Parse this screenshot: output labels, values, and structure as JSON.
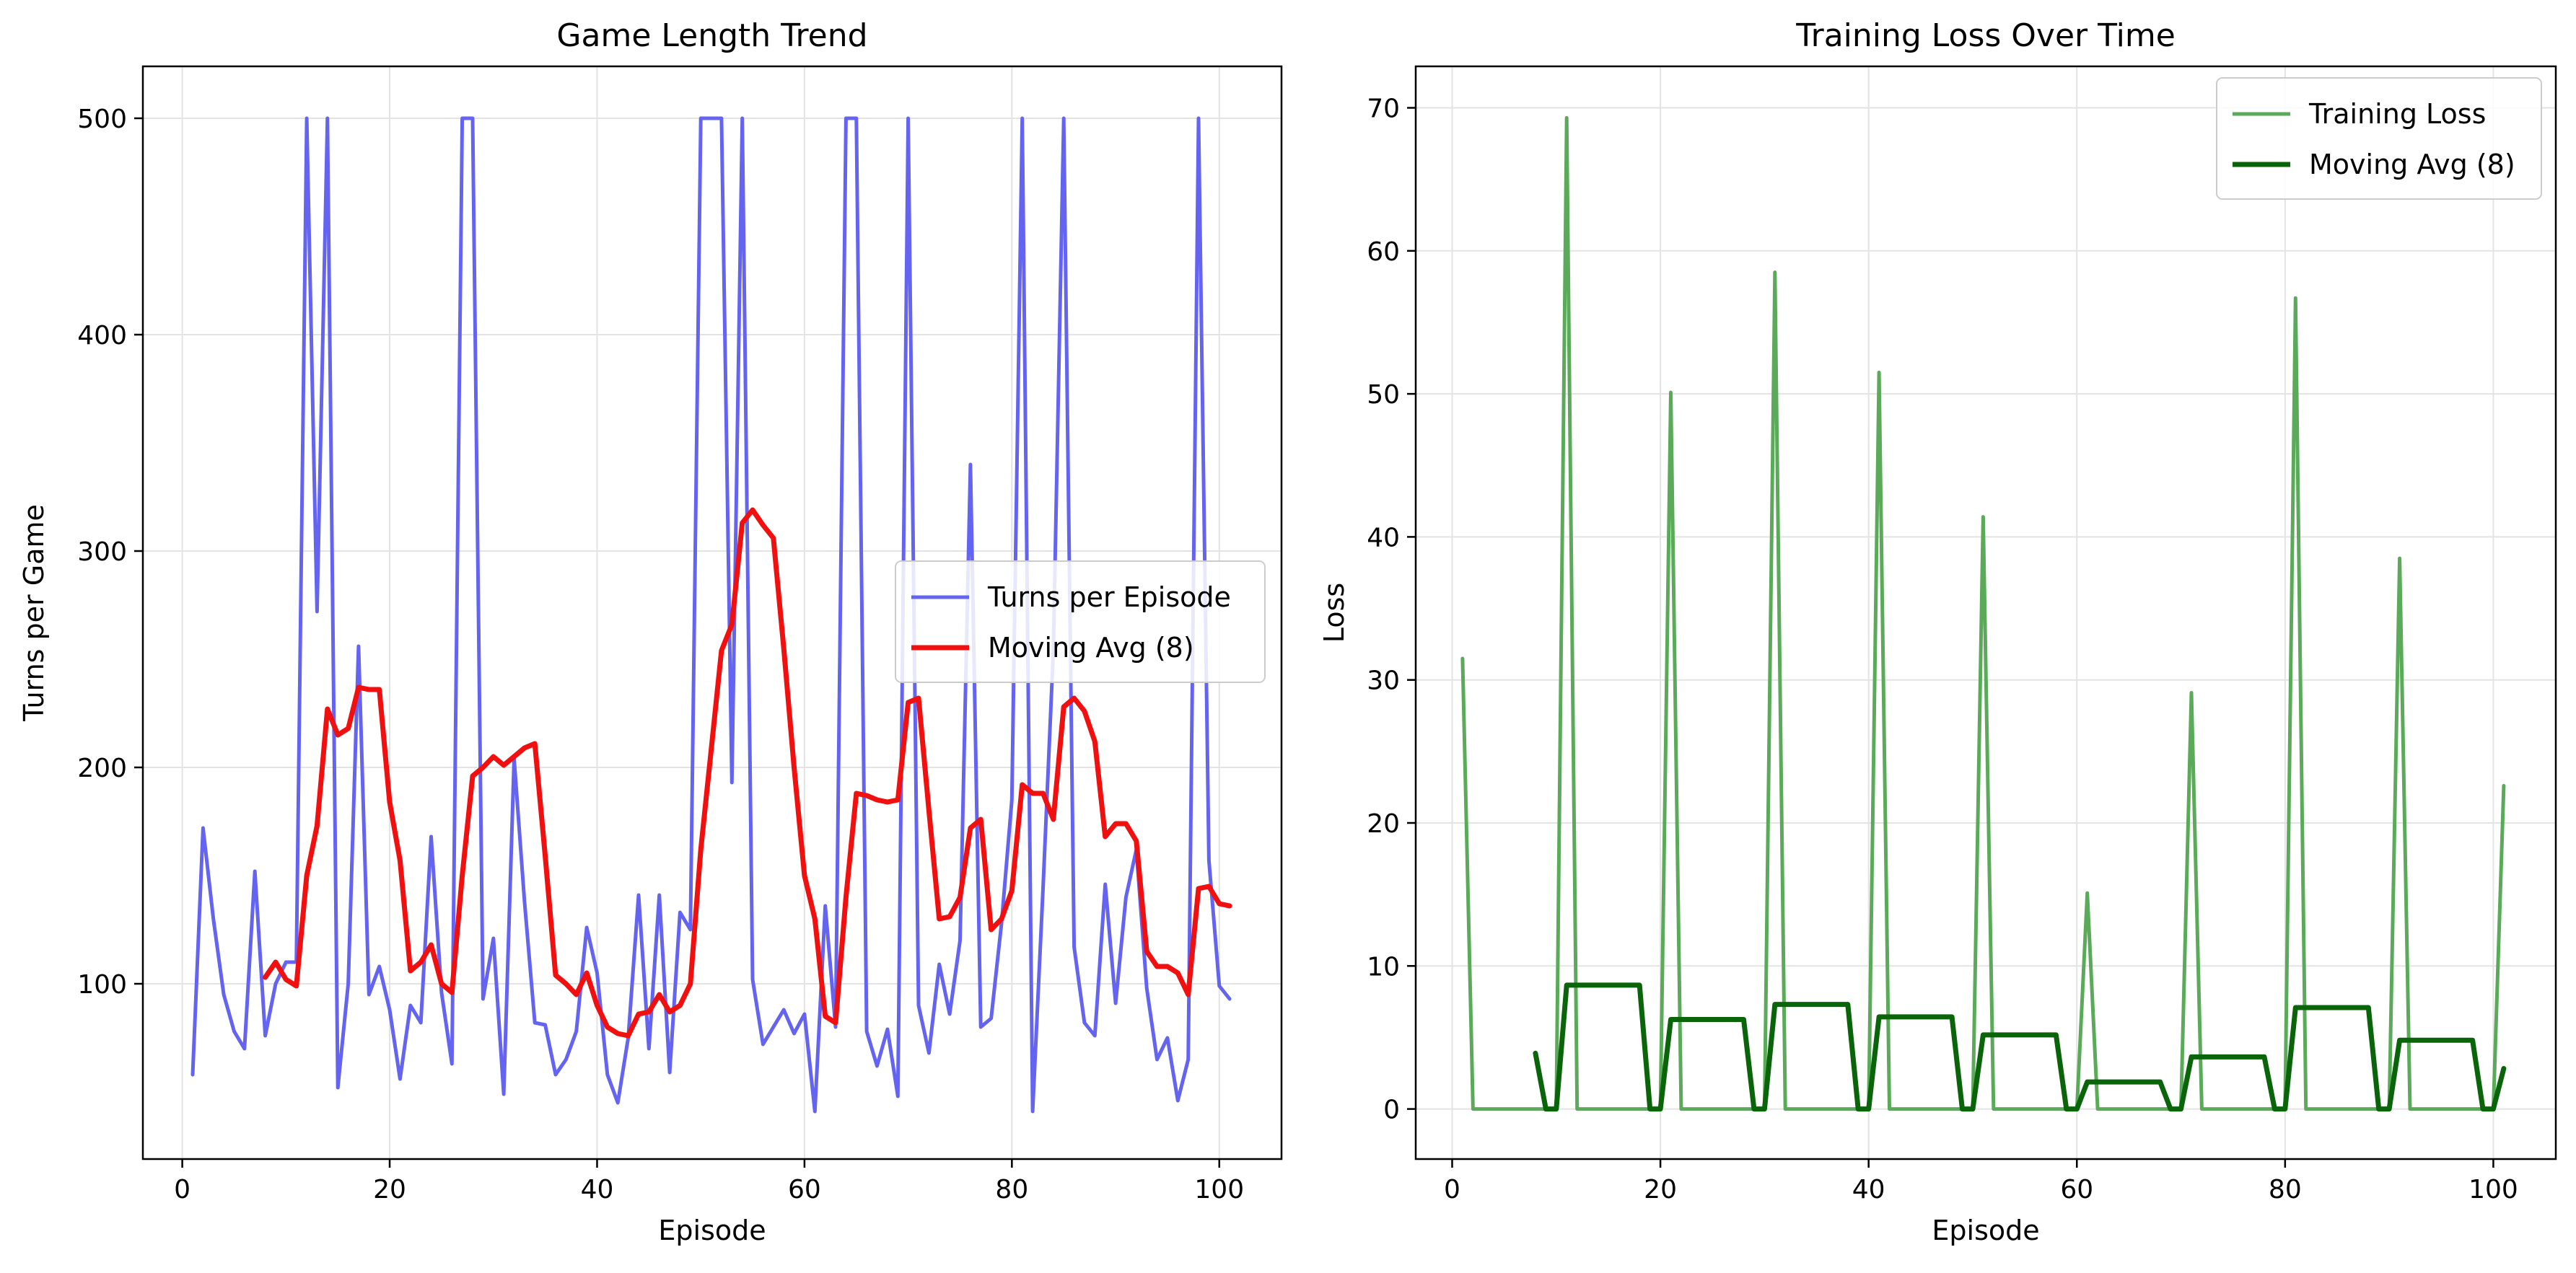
{
  "chart_data": [
    {
      "type": "line",
      "title": "Game Length Trend",
      "xlabel": "Episode",
      "ylabel": "Turns per Game",
      "xlim": [
        -3.8,
        106
      ],
      "ylim": [
        19,
        524
      ],
      "xticks": [
        0,
        20,
        40,
        60,
        80,
        100
      ],
      "yticks": [
        100,
        200,
        300,
        400,
        500
      ],
      "grid": true,
      "legend_position": "center-right",
      "series": [
        {
          "name": "Turns per Episode",
          "color": "#6464f0",
          "x": [
            1,
            2,
            3,
            4,
            5,
            6,
            7,
            8,
            9,
            10,
            11,
            12,
            13,
            14,
            15,
            16,
            17,
            18,
            19,
            20,
            21,
            22,
            23,
            24,
            25,
            26,
            27,
            28,
            29,
            30,
            31,
            32,
            33,
            34,
            35,
            36,
            37,
            38,
            39,
            40,
            41,
            42,
            43,
            44,
            45,
            46,
            47,
            48,
            49,
            50,
            51,
            52,
            53,
            54,
            55,
            56,
            57,
            58,
            59,
            60,
            61,
            62,
            63,
            64,
            65,
            66,
            67,
            68,
            69,
            70,
            71,
            72,
            73,
            74,
            75,
            76,
            77,
            78,
            79,
            80,
            81,
            82,
            83,
            84,
            85,
            86,
            87,
            88,
            89,
            90,
            91,
            92,
            93,
            94,
            95,
            96,
            97,
            98,
            99,
            100,
            101
          ],
          "y": [
            58,
            172,
            130,
            95,
            78,
            70,
            152,
            76,
            100,
            110,
            110,
            500,
            272,
            500,
            52,
            100,
            256,
            95,
            108,
            88,
            56,
            90,
            82,
            168,
            96,
            63,
            500,
            500,
            93,
            121,
            49,
            204,
            138,
            82,
            81,
            58,
            65,
            78,
            126,
            105,
            58,
            45,
            75,
            141,
            70,
            141,
            59,
            133,
            125,
            500,
            500,
            500,
            193,
            500,
            102,
            72,
            80,
            88,
            77,
            86,
            41,
            136,
            80,
            500,
            500,
            78,
            62,
            79,
            48,
            500,
            90,
            68,
            109,
            86,
            120,
            340,
            80,
            84,
            128,
            185,
            500,
            41,
            144,
            254,
            500,
            117,
            82,
            76,
            146,
            91,
            140,
            162,
            98,
            65,
            75,
            46,
            65,
            500,
            157,
            99,
            93
          ]
        },
        {
          "name": "Moving Avg (8)",
          "color": "#f01010",
          "x": [
            8,
            9,
            10,
            11,
            12,
            13,
            14,
            15,
            16,
            17,
            18,
            19,
            20,
            21,
            22,
            23,
            24,
            25,
            26,
            27,
            28,
            29,
            30,
            31,
            32,
            33,
            34,
            35,
            36,
            37,
            38,
            39,
            40,
            41,
            42,
            43,
            44,
            45,
            46,
            47,
            48,
            49,
            50,
            51,
            52,
            53,
            54,
            55,
            56,
            57,
            58,
            59,
            60,
            61,
            62,
            63,
            64,
            65,
            66,
            67,
            68,
            69,
            70,
            71,
            72,
            73,
            74,
            75,
            76,
            77,
            78,
            79,
            80,
            81,
            82,
            83,
            84,
            85,
            86,
            87,
            88,
            89,
            90,
            91,
            92,
            93,
            94,
            95,
            96,
            97,
            98,
            99,
            100,
            101
          ],
          "y": [
            103,
            110,
            102,
            99,
            150,
            173,
            227,
            215,
            218,
            237,
            236,
            236,
            184,
            157,
            106,
            110,
            118,
            100,
            96,
            150,
            196,
            200,
            205,
            201,
            205,
            209,
            211,
            159,
            104,
            100,
            95,
            105,
            90,
            80,
            77,
            76,
            86,
            87,
            95,
            87,
            90,
            100,
            162,
            208,
            254,
            266,
            313,
            319,
            312,
            306,
            255,
            200,
            150,
            130,
            85,
            82,
            140,
            188,
            187,
            185,
            184,
            185,
            230,
            232,
            180,
            130,
            131,
            140,
            172,
            176,
            125,
            130,
            143,
            192,
            188,
            188,
            176,
            228,
            232,
            226,
            212,
            168,
            174,
            174,
            166,
            115,
            108,
            108,
            105,
            95,
            144,
            145,
            137,
            136
          ]
        }
      ]
    },
    {
      "type": "line",
      "title": "Training Loss Over Time",
      "xlabel": "Episode",
      "ylabel": "Loss",
      "xlim": [
        -3.5,
        106
      ],
      "ylim": [
        -3.5,
        72.9
      ],
      "xticks": [
        0,
        20,
        40,
        60,
        80,
        100
      ],
      "yticks": [
        0,
        10,
        20,
        30,
        40,
        50,
        60,
        70
      ],
      "grid": true,
      "legend_position": "top-right",
      "series": [
        {
          "name": "Training Loss",
          "color": "#5aaa5a",
          "x": [
            1,
            2,
            10,
            11,
            12,
            20,
            21,
            22,
            30,
            31,
            32,
            40,
            41,
            42,
            50,
            51,
            52,
            60,
            61,
            62,
            70,
            71,
            72,
            80,
            81,
            82,
            90,
            91,
            92,
            100,
            101
          ],
          "y": [
            31.5,
            0,
            0,
            69.3,
            0,
            0,
            50.1,
            0,
            0,
            58.5,
            0,
            0,
            51.5,
            0,
            0,
            41.4,
            0,
            0,
            15.1,
            0,
            0,
            29.1,
            0,
            0,
            56.7,
            0,
            0,
            38.5,
            0,
            0,
            22.6
          ]
        },
        {
          "name": "Moving Avg (8)",
          "color": "#0a640a",
          "x": [
            8,
            9,
            10,
            11,
            18,
            19,
            20,
            21,
            28,
            29,
            30,
            31,
            38,
            39,
            40,
            41,
            48,
            49,
            50,
            51,
            58,
            59,
            60,
            61,
            68,
            69,
            70,
            71,
            78,
            79,
            80,
            81,
            88,
            89,
            90,
            91,
            98,
            99,
            100,
            101
          ],
          "y": [
            3.9,
            0,
            0,
            8.66,
            8.66,
            0,
            0,
            6.26,
            6.26,
            0,
            0,
            7.31,
            7.31,
            0,
            0,
            6.44,
            6.44,
            0,
            0,
            5.18,
            5.18,
            0,
            0,
            1.89,
            1.89,
            0,
            0,
            3.64,
            3.64,
            0,
            0,
            7.09,
            7.09,
            0,
            0,
            4.81,
            4.81,
            0,
            0,
            2.83
          ]
        }
      ]
    }
  ]
}
